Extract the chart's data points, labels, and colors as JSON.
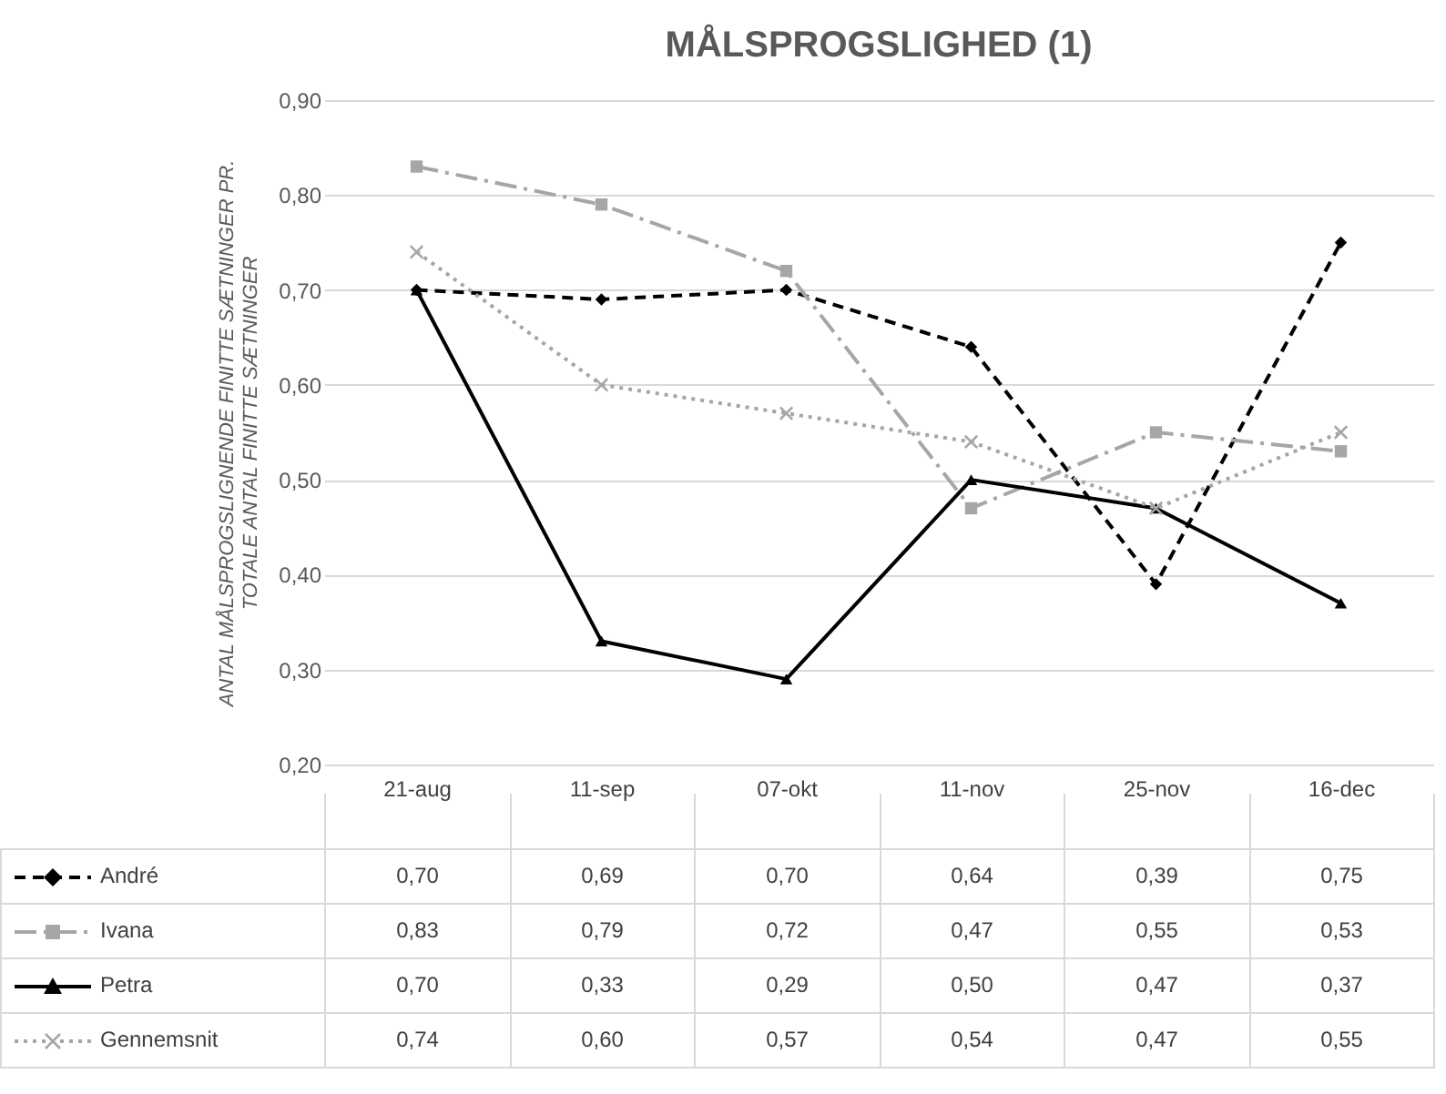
{
  "chart_data": {
    "type": "line",
    "title": "MÅLSPROGSLIGHED (1)",
    "ylabel": "ANTAL MÅLSPROGSLIGNENDE FINITTE SÆTNINGER PR. TOTALE ANTAL FINITTE SÆTNINGER",
    "categories": [
      "21-aug",
      "11-sep",
      "07-okt",
      "11-nov",
      "25-nov",
      "16-dec"
    ],
    "series": [
      {
        "name": "André",
        "color": "#000000",
        "line_style": "dashed",
        "marker": "diamond",
        "values": [
          0.7,
          0.69,
          0.7,
          0.64,
          0.39,
          0.75
        ],
        "value_labels": [
          "0,70",
          "0,69",
          "0,70",
          "0,64",
          "0,39",
          "0,75"
        ]
      },
      {
        "name": "Ivana",
        "color": "#a6a6a6",
        "line_style": "dashdot",
        "marker": "square",
        "values": [
          0.83,
          0.79,
          0.72,
          0.47,
          0.55,
          0.53
        ],
        "value_labels": [
          "0,83",
          "0,79",
          "0,72",
          "0,47",
          "0,55",
          "0,53"
        ]
      },
      {
        "name": "Petra",
        "color": "#000000",
        "line_style": "solid",
        "marker": "triangle",
        "values": [
          0.7,
          0.33,
          0.29,
          0.5,
          0.47,
          0.37
        ],
        "value_labels": [
          "0,70",
          "0,33",
          "0,29",
          "0,50",
          "0,47",
          "0,37"
        ]
      },
      {
        "name": "Gennemsnit",
        "color": "#a6a6a6",
        "line_style": "dotted",
        "marker": "cross",
        "values": [
          0.74,
          0.6,
          0.57,
          0.54,
          0.47,
          0.55
        ],
        "value_labels": [
          "0,74",
          "0,60",
          "0,57",
          "0,54",
          "0,47",
          "0,55"
        ]
      }
    ],
    "ylim": [
      0.2,
      0.9
    ],
    "yticks": [
      {
        "value": 0.2,
        "label": "0,20"
      },
      {
        "value": 0.3,
        "label": "0,30"
      },
      {
        "value": 0.4,
        "label": "0,40"
      },
      {
        "value": 0.5,
        "label": "0,50"
      },
      {
        "value": 0.6,
        "label": "0,60"
      },
      {
        "value": 0.7,
        "label": "0,70"
      },
      {
        "value": 0.8,
        "label": "0,80"
      },
      {
        "value": 0.9,
        "label": "0,90"
      }
    ],
    "grid": "y",
    "legend": "bottom"
  }
}
